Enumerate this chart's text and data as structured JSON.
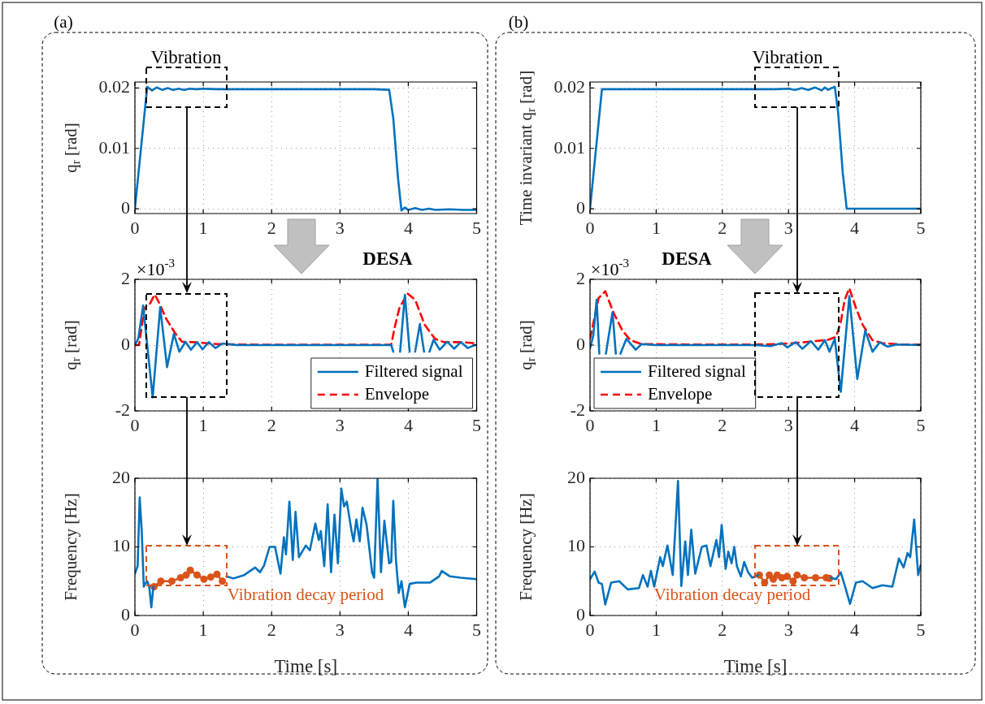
{
  "chart_data": [
    {
      "type": "line",
      "ylabel": "q$_{r}$ [rad]",
      "annotations": [
        "(a)",
        "Vibration"
      ],
      "xlim": [
        0,
        5
      ],
      "xticks": [
        0,
        1,
        2,
        3,
        4,
        5
      ],
      "ylim": [
        -0.0008,
        0.021
      ],
      "yticks": [
        0,
        0.01,
        0.02
      ],
      "grid": true,
      "series": [
        {
          "color": "#0072bd",
          "x": [
            0,
            0.18,
            0.25,
            0.32,
            0.4,
            0.48,
            0.56,
            0.64,
            0.72,
            0.8,
            0.9,
            1.0,
            1.2,
            1.5,
            2,
            3,
            3.5,
            3.72,
            3.78,
            3.85,
            3.9,
            3.95,
            4.0,
            4.1,
            4.2,
            4.3,
            4.4,
            4.6,
            4.8,
            5
          ],
          "values": [
            0,
            0.0202,
            0.0196,
            0.0201,
            0.0197,
            0.02,
            0.0197,
            0.0199,
            0.0197,
            0.0199,
            0.0198,
            0.0199,
            0.0198,
            0.0198,
            0.0198,
            0.0198,
            0.0198,
            0.0197,
            0.015,
            0.005,
            -0.0003,
            0.0002,
            -0.0002,
            0.0001,
            -0.0002,
            0,
            -0.0002,
            -0.0001,
            -0.0002,
            -0.0002
          ]
        }
      ]
    },
    {
      "type": "line",
      "ylabel": "Time invariant q$_{r}$ [rad]",
      "annotations": [
        "(b)",
        "Vibration"
      ],
      "xlim": [
        0,
        5
      ],
      "xticks": [
        0,
        1,
        2,
        3,
        4,
        5
      ],
      "ylim": [
        -0.0008,
        0.021
      ],
      "yticks": [
        0,
        0.01,
        0.02
      ],
      "grid": true,
      "series": [
        {
          "color": "#0072bd",
          "x": [
            0,
            0.18,
            0.5,
            1,
            2,
            2.5,
            2.8,
            3.0,
            3.1,
            3.2,
            3.3,
            3.4,
            3.5,
            3.55,
            3.6,
            3.65,
            3.7,
            3.75,
            3.82,
            3.88,
            4,
            4.5,
            5
          ],
          "values": [
            0,
            0.0198,
            0.0198,
            0.0198,
            0.0198,
            0.0198,
            0.0198,
            0.0199,
            0.0197,
            0.02,
            0.0197,
            0.0201,
            0.0196,
            0.0201,
            0.0197,
            0.02,
            0.0202,
            0.016,
            0.006,
            0,
            0,
            0,
            0
          ]
        }
      ]
    },
    {
      "type": "line",
      "ylabel": "q$_{r}$ [rad]",
      "annotations": [
        "×10$^{-3}$",
        "DESA"
      ],
      "xlim": [
        0,
        5
      ],
      "xticks": [
        0,
        1,
        2,
        3,
        4,
        5
      ],
      "ylim": [
        -2,
        2
      ],
      "yticks": [
        -2,
        0,
        2
      ],
      "grid": true,
      "legend": "bottom right",
      "series": [
        {
          "name": "Filtered signal",
          "color": "#0072bd",
          "x": [
            0,
            0.05,
            0.12,
            0.26,
            0.37,
            0.47,
            0.57,
            0.65,
            0.74,
            0.82,
            0.91,
            0.99,
            1.08,
            1.18,
            1.28,
            1.5,
            2,
            3,
            3.75,
            3.78,
            3.82,
            3.88,
            3.95,
            4.02,
            4.06,
            4.1,
            4.17,
            4.23,
            4.27,
            4.31,
            4.37,
            4.46,
            4.57,
            4.67,
            4.77,
            4.87,
            4.97,
            5
          ],
          "values": [
            0,
            0.2,
            1.2,
            -1.59,
            1.15,
            -0.67,
            0.34,
            -0.2,
            0.1,
            -0.14,
            0.09,
            -0.13,
            0.09,
            -0.09,
            0.05,
            0,
            0,
            0,
            0,
            -0.2,
            null,
            -0.2,
            1.53,
            -0.2,
            null,
            -0.2,
            0.64,
            -0.2,
            null,
            -0.2,
            0.16,
            -0.14,
            0.1,
            -0.11,
            0.09,
            -0.09,
            0,
            0
          ]
        },
        {
          "name": "Envelope",
          "color": "#ff0000",
          "line_style": "dashed",
          "x": [
            0,
            0.06,
            0.14,
            0.22,
            0.29,
            0.36,
            0.46,
            0.59,
            0.69,
            0.87,
            1.03,
            1.2,
            1.5,
            2,
            3,
            3.75,
            3.8,
            3.87,
            3.99,
            4.1,
            4.24,
            4.39,
            4.52,
            4.77,
            4.97
          ],
          "values": [
            0,
            0,
            1.13,
            1.26,
            1.54,
            1.26,
            0.79,
            0.36,
            0.1,
            0.09,
            0.06,
            0.03,
            0.02,
            0.01,
            0.01,
            0.01,
            0.53,
            1.13,
            1.57,
            1.38,
            0.62,
            0.19,
            0.09,
            0.09,
            0.06
          ]
        }
      ]
    },
    {
      "type": "line",
      "ylabel": "q$_{r}$ [rad]",
      "annotations": [
        "×10$^{-3}$",
        "DESA"
      ],
      "xlim": [
        0,
        5
      ],
      "xticks": [
        0,
        1,
        2,
        3,
        4,
        5
      ],
      "ylim": [
        -2,
        2
      ],
      "yticks": [
        -2,
        0,
        2
      ],
      "grid": true,
      "legend": "bottom left",
      "series": [
        {
          "name": "Filtered signal",
          "color": "#0072bd",
          "x": [
            0,
            0.05,
            0.1,
            0.14,
            0.17,
            0.24,
            0.34,
            0.39,
            0.42,
            0.46,
            0.55,
            0.69,
            0.78,
            1,
            2,
            2.5,
            2.73,
            2.9,
            2.98,
            3.11,
            3.21,
            3.34,
            3.45,
            3.55,
            3.62,
            3.7,
            3.79,
            3.92,
            4.04,
            4.16,
            4.27,
            4.38,
            4.5,
            4.63,
            5
          ],
          "values": [
            -0.1,
            0.3,
            1.38,
            -0.26,
            null,
            -0.26,
            1.0,
            -0.26,
            null,
            -0.26,
            0.19,
            -0.14,
            0.03,
            0,
            0,
            0,
            -0.03,
            0.06,
            -0.07,
            0.09,
            -0.11,
            0.12,
            -0.14,
            0.15,
            -0.2,
            0.19,
            -1.42,
            1.49,
            -1.03,
            0.44,
            -0.2,
            0.09,
            -0.05,
            0.02,
            0
          ]
        },
        {
          "name": "Envelope",
          "color": "#ff0000",
          "line_style": "dashed",
          "x": [
            0,
            0.13,
            0.23,
            0.36,
            0.49,
            0.61,
            0.78,
            1.5,
            2.5,
            2.81,
            3.0,
            3.3,
            3.6,
            3.72,
            3.79,
            3.85,
            3.92,
            4.02,
            4.12,
            4.27,
            4.42,
            4.7,
            5
          ],
          "values": [
            0.2,
            1.43,
            1.64,
            0.96,
            0.44,
            0.15,
            0.03,
            0.02,
            0.02,
            0.03,
            0.05,
            0.1,
            0.16,
            0.25,
            0.7,
            1.38,
            1.73,
            1.13,
            0.62,
            0.15,
            0.06,
            0.02,
            0.02
          ]
        }
      ]
    },
    {
      "type": "line",
      "xlabel": "Time [s]",
      "ylabel": "Frequency [Hz]",
      "annotations": [
        "Vibration decay period"
      ],
      "xlim": [
        0,
        5
      ],
      "xticks": [
        0,
        1,
        2,
        3,
        4,
        5
      ],
      "ylim": [
        0,
        20
      ],
      "yticks": [
        0,
        10,
        20
      ],
      "grid": true,
      "series": [
        {
          "color": "#0072bd",
          "x": [
            0,
            0.04,
            0.07,
            0.1,
            0.13,
            0.15,
            0.18,
            0.21,
            0.24,
            0.27,
            0.28,
            1.33,
            1.34,
            1.44,
            1.6,
            1.76,
            1.83,
            1.89,
            1.97,
            2.05,
            2.13,
            2.18,
            2.21,
            2.26,
            2.31,
            2.35,
            2.4,
            2.5,
            2.56,
            2.64,
            2.69,
            2.72,
            2.77,
            2.82,
            2.87,
            2.92,
            2.97,
            3.02,
            3.06,
            3.1,
            3.17,
            3.2,
            3.24,
            3.29,
            3.33,
            3.39,
            3.47,
            3.5,
            3.55,
            3.6,
            3.65,
            3.72,
            3.75,
            3.78,
            3.82,
            3.86,
            3.9,
            3.95,
            4.02,
            4.12,
            4.32,
            4.45,
            4.49,
            4.61,
            4.77,
            5
          ],
          "values": [
            6.1,
            7.2,
            17.2,
            12.3,
            4.2,
            4.6,
            5.0,
            4.2,
            1.2,
            4.2,
            null,
            null,
            5.7,
            5.4,
            5.9,
            7.0,
            6.3,
            7.3,
            10.0,
            10.0,
            6.1,
            11.4,
            8.9,
            16.6,
            8.1,
            15.1,
            8.5,
            10.2,
            9.5,
            13.4,
            11.0,
            12.3,
            7.2,
            16.2,
            6.3,
            14.7,
            7.6,
            18.5,
            15.9,
            16.6,
            12.3,
            10.8,
            14.0,
            10.8,
            15.7,
            13.2,
            6.3,
            5.5,
            20,
            6.3,
            13.8,
            7.6,
            7.8,
            16.7,
            8.0,
            3.3,
            5.0,
            1.2,
            4.6,
            4.8,
            4.8,
            5.7,
            6.5,
            5.7,
            5.5,
            5.3
          ]
        },
        {
          "color": "#d95319",
          "marker": "circle",
          "x": [
            0.28,
            0.38,
            0.54,
            0.67,
            0.75,
            0.81,
            0.91,
            1.01,
            1.11,
            1.2,
            1.28
          ],
          "values": [
            4.2,
            5.0,
            5.0,
            5.5,
            5.9,
            6.6,
            5.9,
            5.3,
            5.6,
            6.0,
            5.0
          ]
        }
      ]
    },
    {
      "type": "line",
      "xlabel": "Time [s]",
      "ylabel": "Frequency [Hz]",
      "annotations": [
        "Vibration decay period"
      ],
      "xlim": [
        0,
        5
      ],
      "xticks": [
        0,
        1,
        2,
        3,
        4,
        5
      ],
      "ylim": [
        0,
        20
      ],
      "yticks": [
        0,
        10,
        20
      ],
      "grid": true,
      "series": [
        {
          "color": "#0072bd",
          "x": [
            0,
            0.07,
            0.13,
            0.18,
            0.23,
            0.32,
            0.44,
            0.57,
            0.74,
            0.8,
            0.87,
            0.92,
            0.97,
            1.06,
            1.1,
            1.17,
            1.25,
            1.33,
            1.38,
            1.44,
            1.48,
            1.53,
            1.59,
            1.69,
            1.76,
            1.82,
            1.91,
            1.95,
            1.99,
            2.05,
            2.09,
            2.14,
            2.18,
            2.22,
            2.28,
            2.33,
            2.39,
            2.45,
            2.54,
            2.56,
            3.62,
            3.64,
            3.72,
            3.79,
            3.85,
            3.93,
            4.02,
            4.12,
            4.27,
            4.42,
            4.57,
            4.67,
            4.74,
            4.8,
            4.84,
            4.9,
            4.96,
            5
          ],
          "values": [
            5.3,
            6.4,
            4.8,
            4.6,
            1.6,
            4.8,
            5.0,
            3.8,
            4.0,
            5.9,
            4.2,
            6.5,
            4.2,
            8.5,
            7.2,
            10.2,
            5.9,
            19.6,
            4.3,
            10.8,
            5.9,
            12.5,
            6.1,
            10.0,
            10.2,
            7.2,
            11.0,
            8.5,
            13.2,
            6.8,
            9.3,
            7.6,
            10.0,
            7.2,
            5.7,
            7.8,
            6.3,
            5.5,
            5.9,
            null,
            null,
            5.5,
            5.3,
            6.3,
            4.4,
            1.7,
            4.8,
            5.0,
            4.0,
            4.4,
            4.2,
            8.3,
            7.0,
            9.1,
            8.5,
            14.0,
            5.9,
            7.4
          ]
        },
        {
          "color": "#d95319",
          "marker": "circle",
          "x": [
            2.56,
            2.64,
            2.71,
            2.77,
            2.83,
            2.9,
            2.98,
            3.07,
            3.13,
            3.24,
            3.41,
            3.57,
            3.62
          ],
          "values": [
            5.9,
            4.8,
            5.9,
            5.3,
            5.9,
            5.5,
            5.7,
            5.0,
            5.9,
            5.5,
            5.5,
            5.5,
            5.4
          ]
        }
      ]
    }
  ]
}
